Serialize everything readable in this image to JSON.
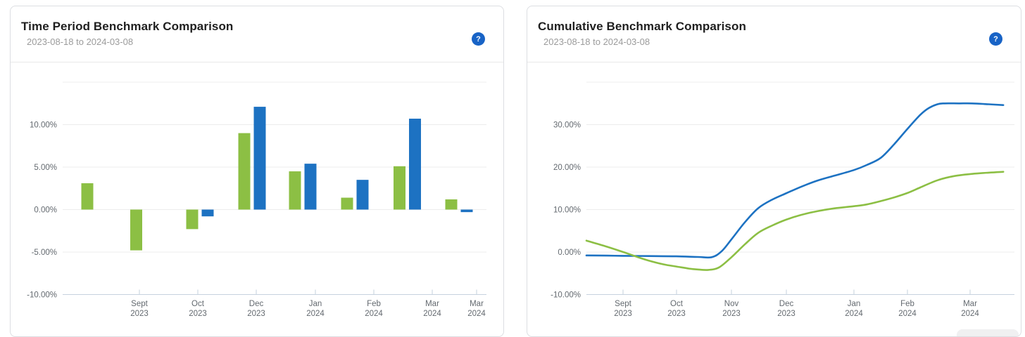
{
  "cards": [
    {
      "title": "Time Period Benchmark Comparison",
      "subtitle": "2023-08-18 to 2024-03-08",
      "help_label": "?"
    },
    {
      "title": "Cumulative Benchmark Comparison",
      "subtitle": "2023-08-18 to 2024-03-08",
      "help_label": "?"
    }
  ],
  "colors": {
    "green_series": "#8cbf44",
    "blue_series": "#1d72c2",
    "help_badge": "#1863c6",
    "grid_line": "#ececec",
    "axis_line": "#c6d2de",
    "axis_text": "#63696f",
    "card_border": "#dcdee2"
  },
  "chart_data": [
    {
      "type": "bar",
      "title": "Time Period Benchmark Comparison",
      "subtitle": "2023-08-18 to 2024-03-08",
      "unit": "percent",
      "x_tick_labels": [
        "Sept 2023",
        "Oct 2023",
        "Dec 2023",
        "Jan 2024",
        "Feb 2024",
        "Mar 2024",
        "Mar 2024"
      ],
      "y_tick_labels": [
        "10.00%",
        "5.00%",
        "0.00%",
        "-5.00%",
        "-10.00%"
      ],
      "ylim": [
        -10,
        15
      ],
      "grid": true,
      "legend": false,
      "series": [
        {
          "name": "green-series",
          "color": "#8cbf44",
          "values": [
            3.1,
            -4.8,
            -2.3,
            9.0,
            4.5,
            1.4,
            5.1,
            1.2
          ]
        },
        {
          "name": "blue-series",
          "color": "#1d72c2",
          "values": [
            0,
            0,
            -0.8,
            12.1,
            5.4,
            3.5,
            10.7,
            -0.3
          ]
        }
      ]
    },
    {
      "type": "line",
      "title": "Cumulative Benchmark Comparison",
      "subtitle": "2023-08-18 to 2024-03-08",
      "unit": "percent",
      "x_tick_labels": [
        "Sept 2023",
        "Oct 2023",
        "Nov 2023",
        "Dec 2023",
        "Jan 2024",
        "Feb 2024",
        "Mar 2024"
      ],
      "y_tick_labels": [
        "30.00%",
        "20.00%",
        "10.00%",
        "0.00%",
        "-10.00%"
      ],
      "ylim": [
        -10,
        40
      ],
      "grid": true,
      "legend": false,
      "series": [
        {
          "name": "blue-series",
          "color": "#1d72c2",
          "points": [
            [
              0,
              -0.8
            ],
            [
              0.05,
              -0.85
            ],
            [
              0.086,
              -0.9
            ],
            [
              0.145,
              -0.95
            ],
            [
              0.21,
              -1.0
            ],
            [
              0.26,
              -1.15
            ],
            [
              0.293,
              -1.2
            ],
            [
              0.316,
              0.2
            ],
            [
              0.339,
              3.0
            ],
            [
              0.37,
              7.0
            ],
            [
              0.401,
              10.3
            ],
            [
              0.433,
              12.3
            ],
            [
              0.466,
              13.8
            ],
            [
              0.5,
              15.3
            ],
            [
              0.539,
              16.8
            ],
            [
              0.58,
              18.0
            ],
            [
              0.625,
              19.3
            ],
            [
              0.655,
              20.5
            ],
            [
              0.688,
              22.2
            ],
            [
              0.72,
              25.5
            ],
            [
              0.75,
              29.0
            ],
            [
              0.78,
              32.3
            ],
            [
              0.8,
              33.9
            ],
            [
              0.82,
              34.8
            ],
            [
              0.835,
              35.0
            ],
            [
              0.87,
              35.0
            ],
            [
              0.901,
              35.0
            ],
            [
              0.94,
              34.8
            ],
            [
              0.974,
              34.6
            ]
          ]
        },
        {
          "name": "green-series",
          "color": "#8cbf44",
          "points": [
            [
              0,
              2.7
            ],
            [
              0.04,
              1.5
            ],
            [
              0.086,
              0.0
            ],
            [
              0.12,
              -1.2
            ],
            [
              0.145,
              -2.0
            ],
            [
              0.18,
              -2.9
            ],
            [
              0.21,
              -3.4
            ],
            [
              0.24,
              -3.9
            ],
            [
              0.26,
              -4.1
            ],
            [
              0.285,
              -4.2
            ],
            [
              0.31,
              -3.6
            ],
            [
              0.339,
              -1.2
            ],
            [
              0.37,
              1.8
            ],
            [
              0.401,
              4.5
            ],
            [
              0.433,
              6.2
            ],
            [
              0.466,
              7.6
            ],
            [
              0.5,
              8.7
            ],
            [
              0.539,
              9.6
            ],
            [
              0.58,
              10.3
            ],
            [
              0.625,
              10.8
            ],
            [
              0.655,
              11.2
            ],
            [
              0.688,
              12.0
            ],
            [
              0.72,
              12.9
            ],
            [
              0.75,
              13.9
            ],
            [
              0.78,
              15.2
            ],
            [
              0.82,
              16.9
            ],
            [
              0.86,
              17.9
            ],
            [
              0.901,
              18.4
            ],
            [
              0.94,
              18.7
            ],
            [
              0.974,
              18.9
            ]
          ]
        }
      ]
    }
  ]
}
